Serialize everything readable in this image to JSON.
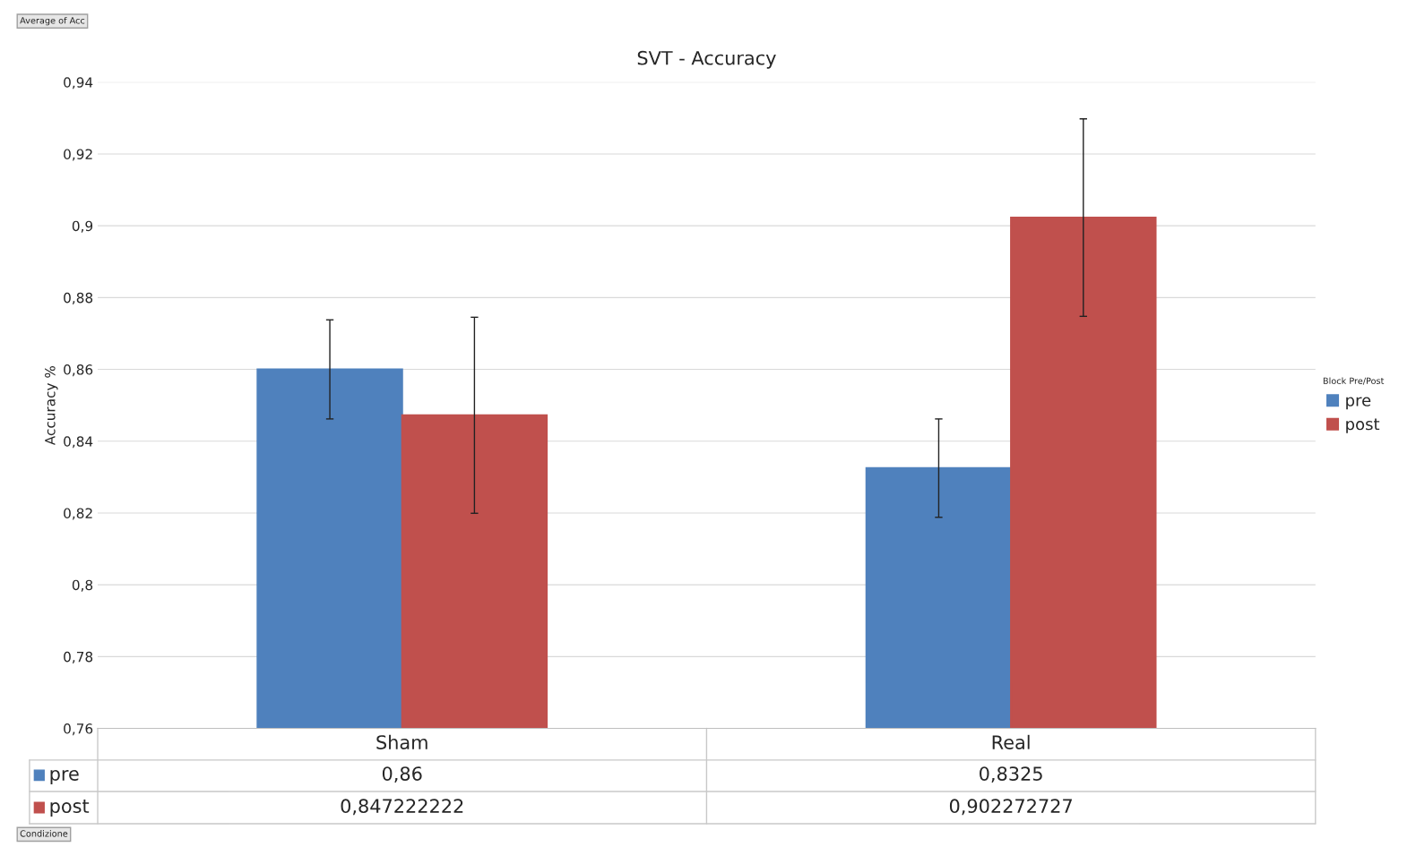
{
  "chart_data": {
    "type": "bar",
    "title": "SVT - Accuracy",
    "ylabel": "Accuracy %",
    "legend_title": "Block Pre/Post",
    "annotations": [
      "Average of Acc",
      "Condizione"
    ],
    "categories": [
      "Sham",
      "Real"
    ],
    "series": [
      {
        "name": "pre",
        "color": "#4f81bd",
        "values": [
          0.86,
          0.8325
        ],
        "errors": [
          0.0138,
          0.0137
        ],
        "value_labels": [
          "0,86",
          "0,8325"
        ]
      },
      {
        "name": "post",
        "color": "#c0504d",
        "values": [
          0.847222222,
          0.902272727
        ],
        "errors": [
          0.0273,
          0.0275
        ],
        "value_labels": [
          "0,847222222",
          "0,902272727"
        ]
      }
    ],
    "ylim": [
      0.76,
      0.94
    ],
    "yticks": [
      {
        "value": 0.76,
        "label": "0,76"
      },
      {
        "value": 0.78,
        "label": "0,78"
      },
      {
        "value": 0.8,
        "label": "0,8"
      },
      {
        "value": 0.82,
        "label": "0,82"
      },
      {
        "value": 0.84,
        "label": "0,84"
      },
      {
        "value": 0.86,
        "label": "0,86"
      },
      {
        "value": 0.88,
        "label": "0,88"
      },
      {
        "value": 0.9,
        "label": "0,9"
      },
      {
        "value": 0.92,
        "label": "0,92"
      },
      {
        "value": 0.94,
        "label": "0,94"
      }
    ],
    "grid": "y",
    "legend": "right"
  }
}
